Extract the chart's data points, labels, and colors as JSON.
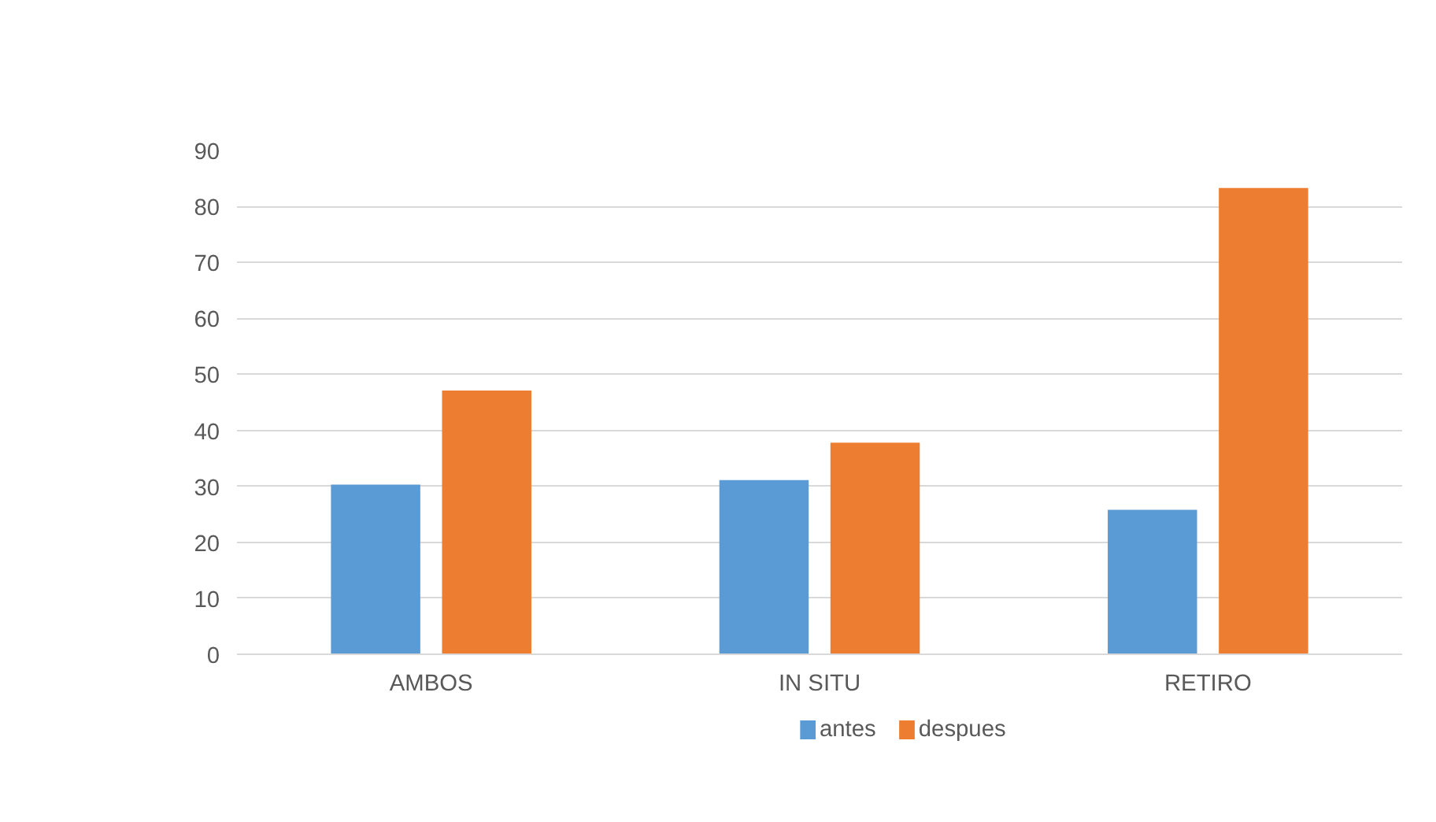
{
  "chart_data": {
    "type": "bar",
    "categories": [
      "AMBOS",
      "IN SITU",
      "RETIRO"
    ],
    "series": [
      {
        "name": "antes",
        "color": "#5b9bd5",
        "values": [
          30.3,
          31.1,
          25.8
        ]
      },
      {
        "name": "despues",
        "color": "#ed7d31",
        "values": [
          47.1,
          37.8,
          83.3
        ]
      }
    ],
    "ylim": [
      0,
      90
    ],
    "yticks": [
      0,
      10,
      20,
      30,
      40,
      50,
      60,
      70,
      80,
      90
    ],
    "grid": "y",
    "legend": "bottom"
  }
}
